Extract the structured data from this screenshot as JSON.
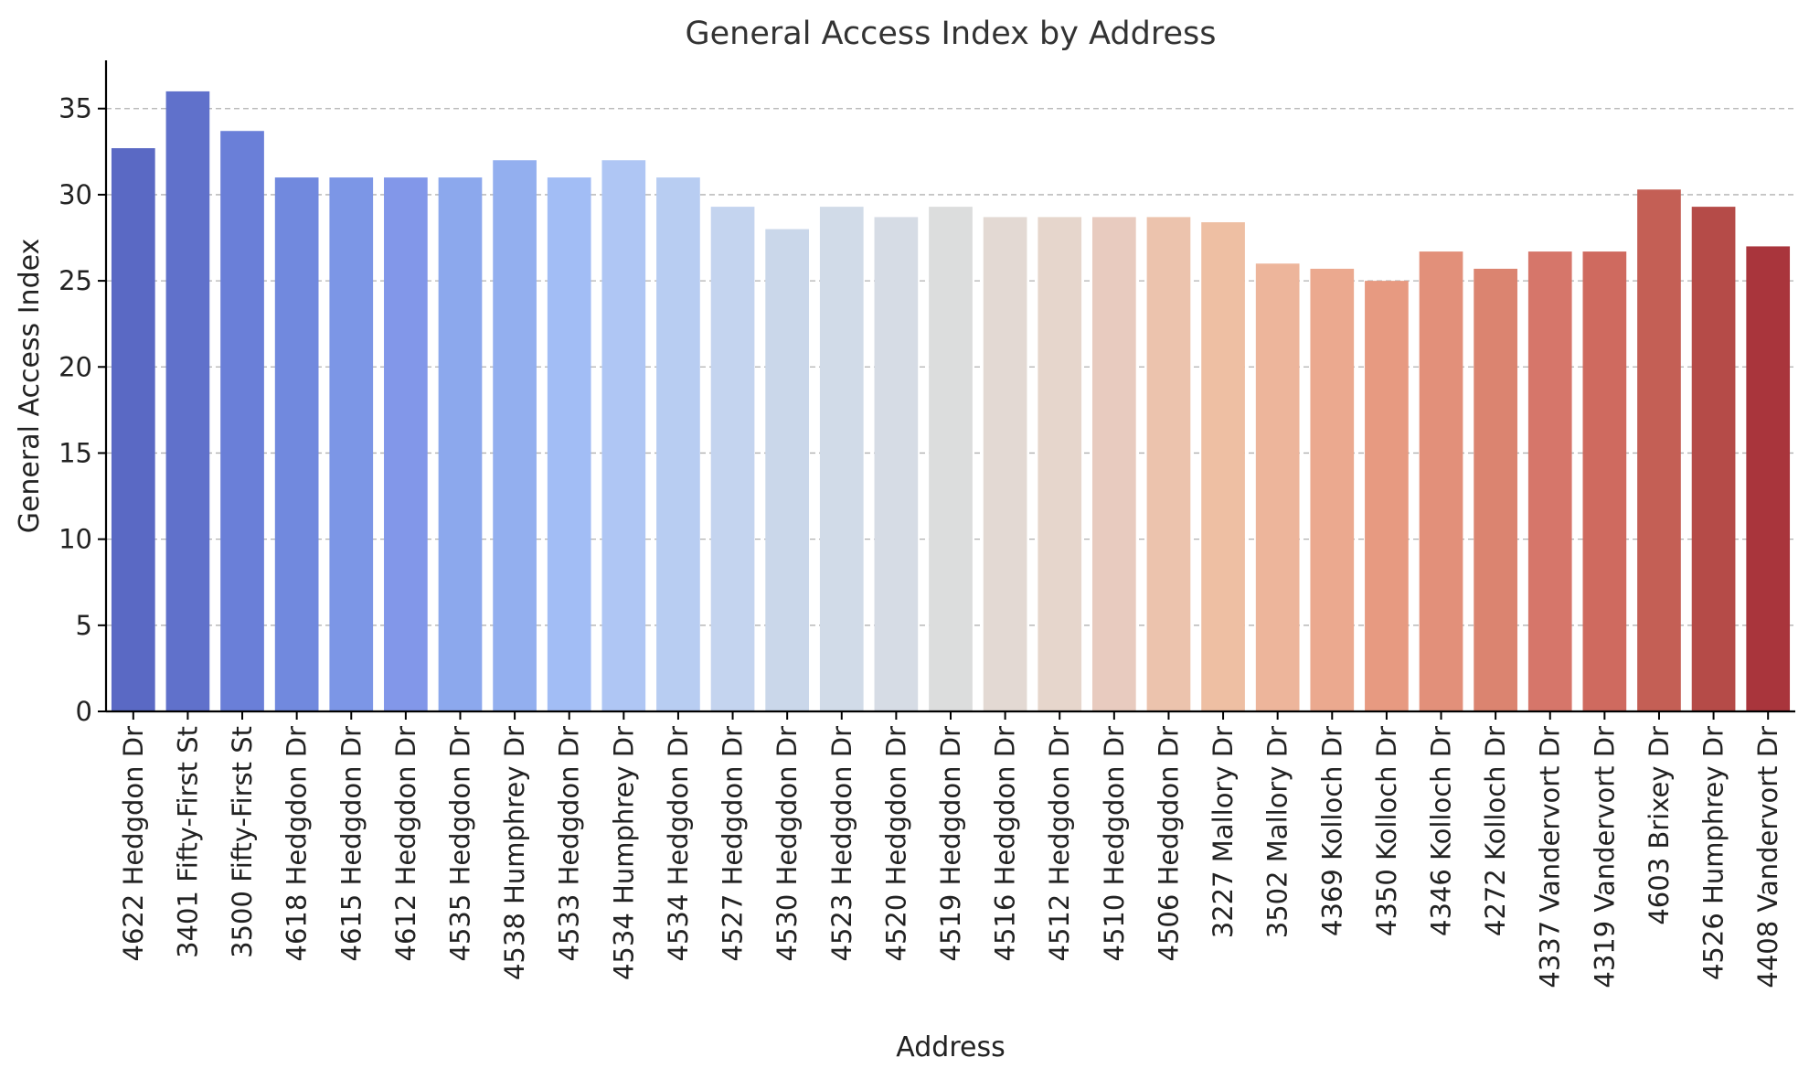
{
  "chart_data": {
    "type": "bar",
    "title": "General Access Index by Address",
    "xlabel": "Address",
    "ylabel": "General Access Index",
    "ylim": [
      0,
      37.8
    ],
    "yticks": [
      0,
      5,
      10,
      15,
      20,
      25,
      30,
      35
    ],
    "grid": "y-dashed",
    "categories": [
      "4622 Hedgdon Dr",
      "3401 Fifty-First St",
      "3500 Fifty-First St",
      "4618 Hedgdon Dr",
      "4615 Hedgdon Dr",
      "4612 Hedgdon Dr",
      "4535 Hedgdon Dr",
      "4538 Humphrey Dr",
      "4533 Hedgdon Dr",
      "4534 Humphrey Dr",
      "4534 Hedgdon Dr",
      "4527 Hedgdon Dr",
      "4530 Hedgdon Dr",
      "4523 Hedgdon Dr",
      "4520 Hedgdon Dr",
      "4519 Hedgdon Dr",
      "4516 Hedgdon Dr",
      "4512 Hedgdon Dr",
      "4510 Hedgdon Dr",
      "4506 Hedgdon Dr",
      "3227 Mallory Dr",
      "3502 Mallory Dr",
      "4369 Kolloch Dr",
      "4350 Kolloch Dr",
      "4346 Kolloch Dr",
      "4272 Kolloch Dr",
      "4337 Vandervort Dr",
      "4319 Vandervort Dr",
      "4603 Brixey Dr",
      "4526 Humphrey Dr",
      "4408 Vandervort Dr"
    ],
    "values": [
      32.7,
      36.0,
      33.7,
      31.0,
      31.0,
      31.0,
      31.0,
      32.0,
      31.0,
      32.0,
      31.0,
      29.3,
      28.0,
      29.3,
      28.7,
      29.3,
      28.7,
      28.7,
      28.7,
      28.7,
      28.4,
      26.0,
      25.7,
      25.0,
      26.7,
      25.7,
      26.7,
      26.7,
      30.3,
      29.3,
      27.0
    ],
    "colors": [
      "#5a69c4",
      "#6071cb",
      "#6a7fd8",
      "#7189de",
      "#7c96e6",
      "#8297e9",
      "#8ca8ed",
      "#93afef",
      "#a2bdf5",
      "#afc6f4",
      "#b8cdf2",
      "#c4d4ef",
      "#cad7ea",
      "#d1dbe8",
      "#d6dce5",
      "#dcdddd",
      "#e3d9d3",
      "#e6d6cc",
      "#e8cbbf",
      "#ecc3ad",
      "#eebfa3",
      "#edb59b",
      "#eba98f",
      "#e79a81",
      "#e2907a",
      "#db8470",
      "#d6766a",
      "#cf6a5f",
      "#c45f55",
      "#b54b48",
      "#a9353c"
    ]
  }
}
